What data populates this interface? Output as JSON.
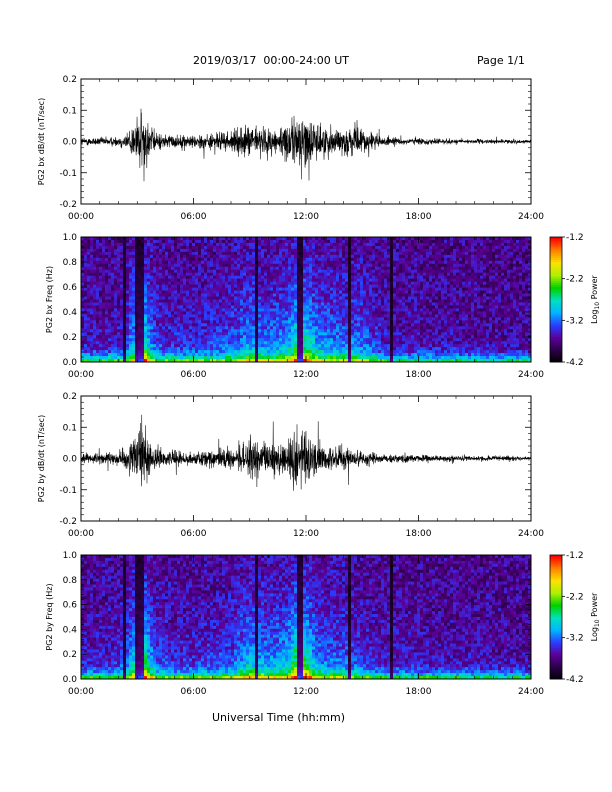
{
  "header": {
    "date_range": "2019/03/17  00:00-24:00 UT",
    "page": "Page 1/1"
  },
  "footer": {
    "xlabel": "Universal Time (hh:mm)"
  },
  "colorbar": {
    "label_log": "Log",
    "label_sub": "10",
    "label_power": "Power",
    "ticks": [
      "-1.2",
      "-2.2",
      "-3.2",
      "-4.2"
    ],
    "range": [
      -4.2,
      -1.2
    ],
    "colors": [
      "#000000",
      "#2a0046",
      "#5a0096",
      "#2a3cff",
      "#00b4ff",
      "#00e0c0",
      "#00d000",
      "#b0f000",
      "#ffe000",
      "#ff8000",
      "#ff0000"
    ]
  },
  "chart_data": [
    {
      "type": "line",
      "ylabel": "PG2 bx dB/dt (nT/sec)",
      "xlim": [
        "00:00",
        "24:00"
      ],
      "ylim": [
        -0.2,
        0.2
      ],
      "xticks": [
        "00:00",
        "06:00",
        "12:00",
        "18:00",
        "24:00"
      ],
      "yticks": [
        "0.2",
        "0.1",
        "0.0",
        "-0.1",
        "-0.2"
      ],
      "envelope": {
        "hours": [
          0,
          1,
          2,
          2.5,
          3,
          3.3,
          3.6,
          4,
          5,
          6,
          7,
          8,
          9,
          10,
          11,
          11.5,
          12,
          12.5,
          13,
          14,
          15,
          15.5,
          16,
          17,
          18,
          20,
          22,
          24
        ],
        "amplitude": [
          0.025,
          0.025,
          0.03,
          0.06,
          0.15,
          0.2,
          0.12,
          0.05,
          0.04,
          0.04,
          0.05,
          0.06,
          0.1,
          0.08,
          0.1,
          0.17,
          0.16,
          0.11,
          0.09,
          0.08,
          0.08,
          0.06,
          0.03,
          0.02,
          0.02,
          0.015,
          0.012,
          0.01
        ]
      }
    },
    {
      "type": "heatmap",
      "ylabel": "PG2 bx Freq (Hz)",
      "xlim": [
        "00:00",
        "24:00"
      ],
      "ylim": [
        0.0,
        1.0
      ],
      "xticks": [
        "00:00",
        "06:00",
        "12:00",
        "18:00",
        "24:00"
      ],
      "yticks": [
        "1.0",
        "0.8",
        "0.6",
        "0.4",
        "0.2",
        "0.0"
      ],
      "colorbar_range": [
        -4.2,
        -1.2
      ]
    },
    {
      "type": "line",
      "ylabel": "PG2 by dB/dt (nT/sec)",
      "xlim": [
        "00:00",
        "24:00"
      ],
      "ylim": [
        -0.2,
        0.2
      ],
      "xticks": [
        "00:00",
        "06:00",
        "12:00",
        "18:00",
        "24:00"
      ],
      "yticks": [
        "0.2",
        "0.1",
        "0.0",
        "-0.1",
        "-0.2"
      ],
      "envelope": {
        "hours": [
          0,
          1,
          2,
          2.5,
          3,
          3.3,
          3.6,
          4,
          5,
          6,
          7,
          8,
          9,
          10,
          11,
          11.5,
          12,
          12.5,
          13,
          14,
          15,
          15.5,
          16,
          17,
          18,
          20,
          22,
          24
        ],
        "amplitude": [
          0.03,
          0.03,
          0.04,
          0.07,
          0.16,
          0.2,
          0.13,
          0.06,
          0.04,
          0.04,
          0.05,
          0.06,
          0.12,
          0.09,
          0.11,
          0.2,
          0.18,
          0.1,
          0.08,
          0.07,
          0.05,
          0.04,
          0.03,
          0.025,
          0.02,
          0.018,
          0.015,
          0.012
        ]
      }
    },
    {
      "type": "heatmap",
      "ylabel": "PG2 by Freq (Hz)",
      "xlim": [
        "00:00",
        "24:00"
      ],
      "ylim": [
        0.0,
        1.0
      ],
      "xticks": [
        "00:00",
        "06:00",
        "12:00",
        "18:00",
        "24:00"
      ],
      "yticks": [
        "1.0",
        "0.8",
        "0.6",
        "0.4",
        "0.2",
        "0.0"
      ],
      "colorbar_range": [
        -4.2,
        -1.2
      ]
    }
  ]
}
